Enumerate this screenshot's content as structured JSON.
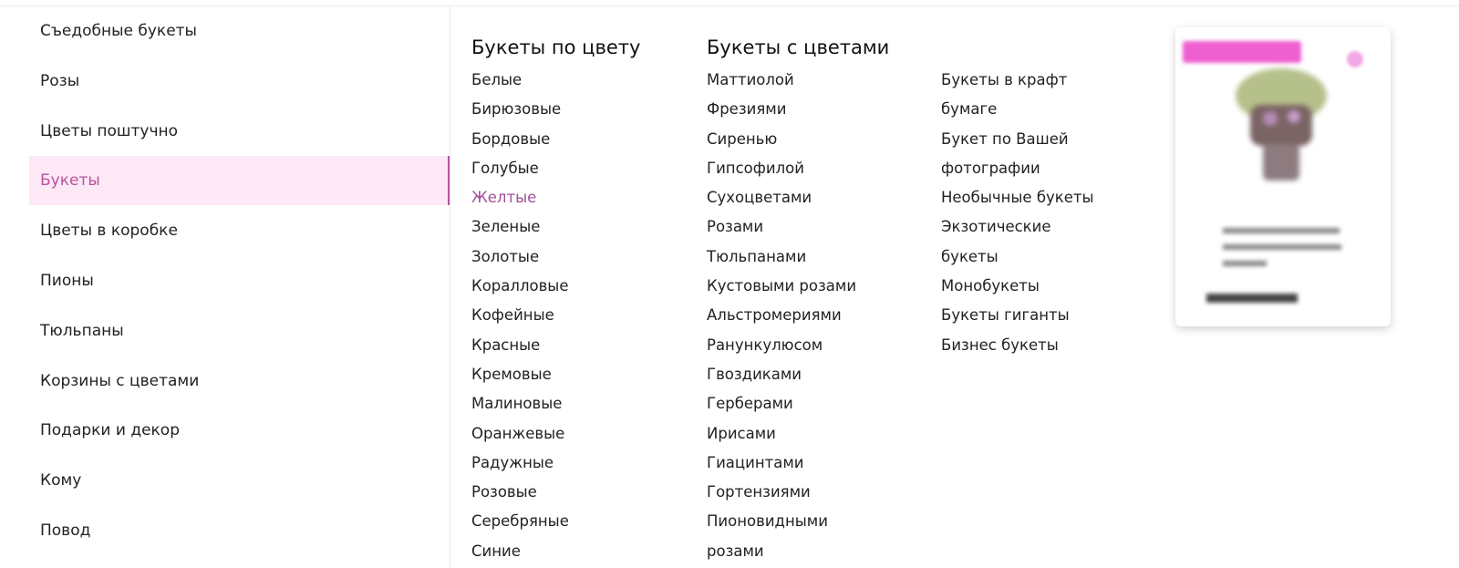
{
  "sidebar": {
    "items": [
      {
        "label": "Съедобные букеты"
      },
      {
        "label": "Розы"
      },
      {
        "label": "Цветы поштучно"
      },
      {
        "label": "Букеты",
        "active": true
      },
      {
        "label": "Цветы в коробке"
      },
      {
        "label": "Пионы"
      },
      {
        "label": "Тюльпаны"
      },
      {
        "label": "Корзины с цветами"
      },
      {
        "label": "Подарки и декор"
      },
      {
        "label": "Кому"
      },
      {
        "label": "Повод"
      }
    ]
  },
  "columns": [
    {
      "title": "Букеты по цвету",
      "items": [
        "Белые",
        "Бирюзовые",
        "Бордовые",
        "Голубые",
        "Желтые",
        "Зеленые",
        "Золотые",
        "Коралловые",
        "Кофейные",
        "Красные",
        "Кремовые",
        "Малиновые",
        "Оранжевые",
        "Радужные",
        "Розовые",
        "Серебряные",
        "Синие"
      ],
      "highlighted": "Желтые"
    },
    {
      "title": "Букеты с цветами",
      "items": [
        "Маттиолой",
        "Фрезиями",
        "Сиренью",
        "Гипсофилой",
        "Сухоцветами",
        "Розами",
        "Тюльпанами",
        "Кустовыми розами",
        "Альстромериями",
        "Ранункулюсом",
        "Гвоздиками",
        "Герберами",
        "Ирисами",
        "Гиацинтами",
        "Гортензиями",
        "Пионовидными",
        "розами"
      ]
    },
    {
      "title": "",
      "items": [
        "Букеты в крафт",
        "бумаге",
        "Букет по Вашей",
        "фотографии",
        "Необычные букеты",
        "Экзотические",
        "букеты",
        "Монобукеты",
        "Букеты гиганты",
        "Бизнес букеты"
      ]
    }
  ],
  "colors": {
    "accent": "#b8539f",
    "active_bg": "#fde8f5",
    "badge": "#ee5fd0"
  },
  "card": {
    "blurred": true,
    "icon": "heart-icon"
  }
}
